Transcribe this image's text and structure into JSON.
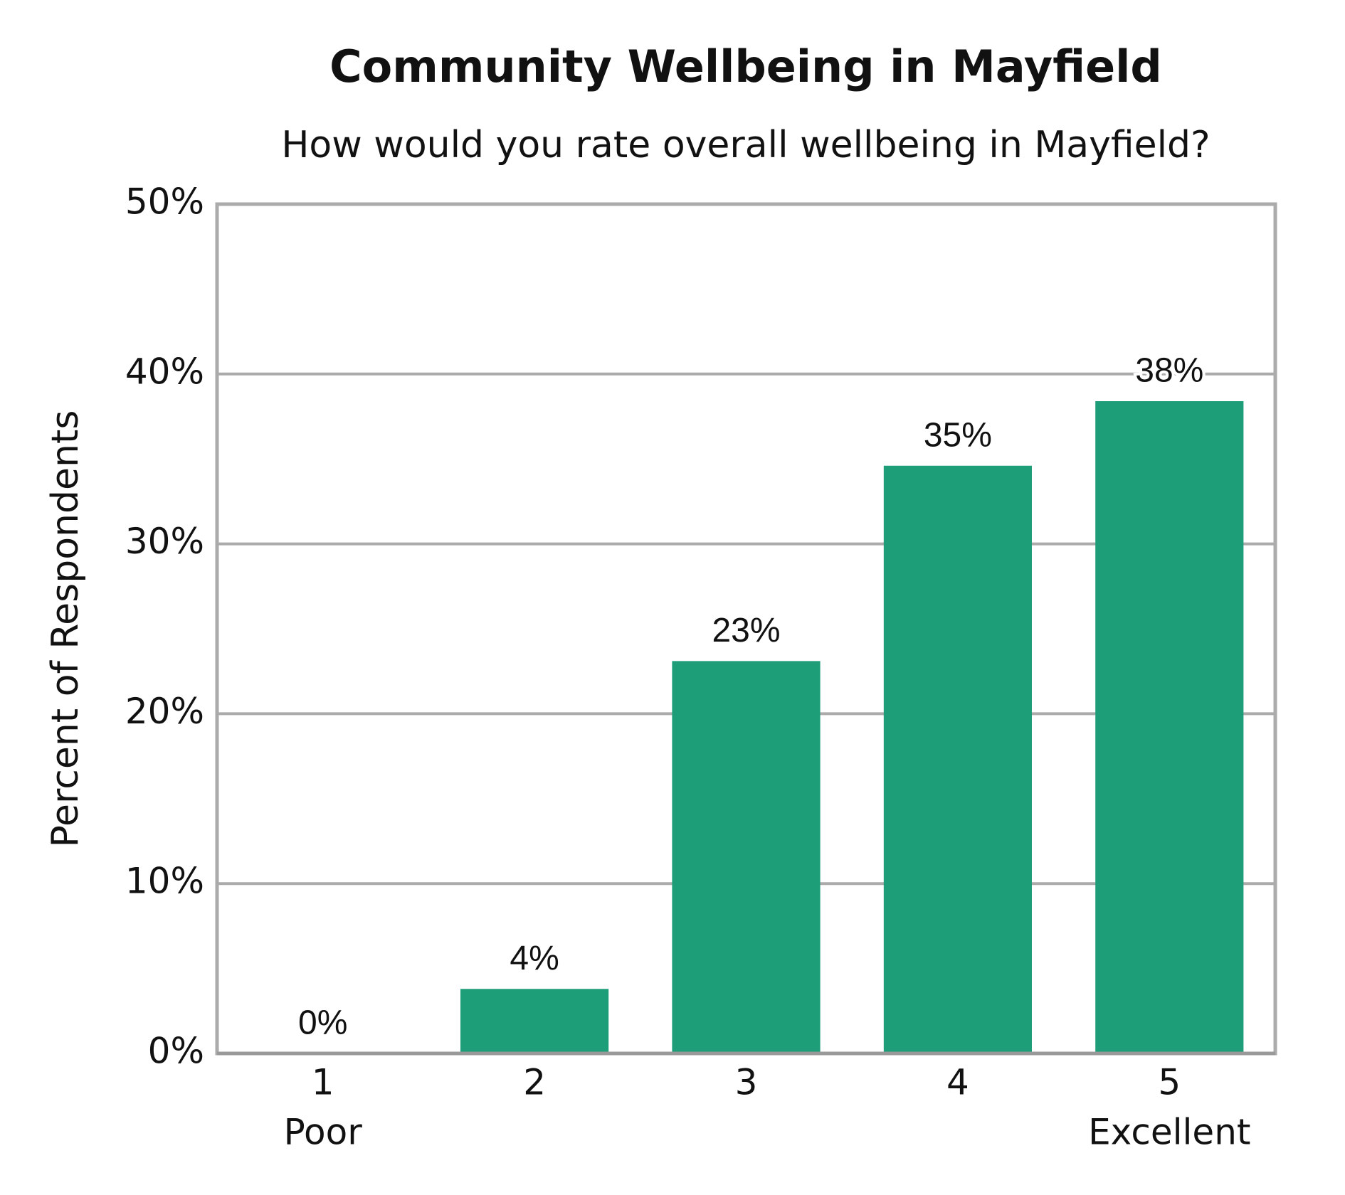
{
  "chart_data": {
    "type": "bar",
    "title": "Community Wellbeing in Mayfield",
    "subtitle": "How would you rate overall wellbeing in Mayfield?",
    "y_label": "Percent of Respondents",
    "categories": [
      "1",
      "2",
      "3",
      "4",
      "5"
    ],
    "category_sublabels": [
      "Poor",
      null,
      null,
      null,
      "Excellent"
    ],
    "values": [
      0,
      3.8,
      23.1,
      34.6,
      38.4
    ],
    "value_labels": [
      "0%",
      "4%",
      "23%",
      "35%",
      "38%"
    ],
    "color": "#1e9e78",
    "ylim": [
      0,
      50
    ],
    "yticks": [
      {
        "value": 0,
        "label": "0%"
      },
      {
        "value": 10,
        "label": "10%"
      },
      {
        "value": 20,
        "label": "20%"
      },
      {
        "value": 30,
        "label": "30%"
      },
      {
        "value": 40,
        "label": "40%"
      },
      {
        "value": 50,
        "label": "50%"
      }
    ],
    "grid": true
  }
}
